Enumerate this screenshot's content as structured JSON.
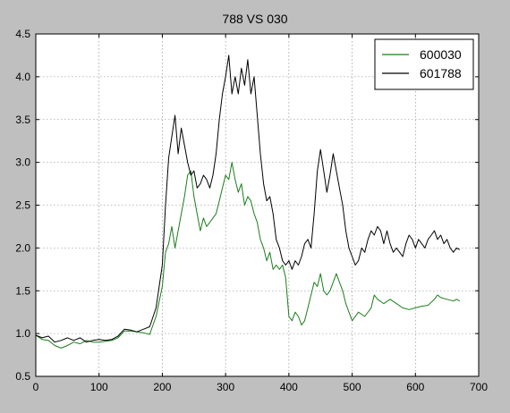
{
  "chart_data": {
    "type": "line",
    "title": "788 VS 030",
    "xlabel": "",
    "ylabel": "",
    "xlim": [
      0,
      700
    ],
    "ylim": [
      0.5,
      4.5
    ],
    "xticks": [
      0,
      100,
      200,
      300,
      400,
      500,
      600,
      700
    ],
    "yticks": [
      0.5,
      1.0,
      1.5,
      2.0,
      2.5,
      3.0,
      3.5,
      4.0,
      4.5
    ],
    "xtick_labels": [
      "0",
      "100",
      "200",
      "300",
      "400",
      "500",
      "600",
      "700"
    ],
    "ytick_labels": [
      "0.5",
      "1.0",
      "1.5",
      "2.0",
      "2.5",
      "3.0",
      "3.5",
      "4.0",
      "4.5"
    ],
    "grid": true,
    "legend_position": "top-right",
    "series": [
      {
        "name": "600030",
        "color": "#1a7f1a",
        "points": [
          [
            0,
            0.98
          ],
          [
            10,
            0.93
          ],
          [
            20,
            0.92
          ],
          [
            30,
            0.86
          ],
          [
            40,
            0.83
          ],
          [
            50,
            0.86
          ],
          [
            60,
            0.9
          ],
          [
            70,
            0.88
          ],
          [
            80,
            0.92
          ],
          [
            90,
            0.9
          ],
          [
            100,
            0.9
          ],
          [
            110,
            0.91
          ],
          [
            120,
            0.92
          ],
          [
            130,
            0.95
          ],
          [
            140,
            1.03
          ],
          [
            150,
            1.03
          ],
          [
            160,
            1.02
          ],
          [
            170,
            1.01
          ],
          [
            180,
            0.99
          ],
          [
            190,
            1.2
          ],
          [
            200,
            1.55
          ],
          [
            205,
            1.95
          ],
          [
            210,
            2.05
          ],
          [
            215,
            2.25
          ],
          [
            220,
            2.0
          ],
          [
            225,
            2.2
          ],
          [
            230,
            2.4
          ],
          [
            235,
            2.6
          ],
          [
            240,
            2.85
          ],
          [
            245,
            2.9
          ],
          [
            250,
            2.6
          ],
          [
            255,
            2.4
          ],
          [
            260,
            2.2
          ],
          [
            265,
            2.35
          ],
          [
            270,
            2.25
          ],
          [
            275,
            2.3
          ],
          [
            280,
            2.35
          ],
          [
            285,
            2.4
          ],
          [
            290,
            2.55
          ],
          [
            295,
            2.7
          ],
          [
            300,
            2.85
          ],
          [
            305,
            2.8
          ],
          [
            310,
            3.0
          ],
          [
            315,
            2.8
          ],
          [
            320,
            2.65
          ],
          [
            325,
            2.75
          ],
          [
            330,
            2.5
          ],
          [
            335,
            2.6
          ],
          [
            340,
            2.55
          ],
          [
            345,
            2.4
          ],
          [
            350,
            2.3
          ],
          [
            355,
            2.1
          ],
          [
            360,
            2.0
          ],
          [
            365,
            1.85
          ],
          [
            370,
            1.95
          ],
          [
            375,
            1.75
          ],
          [
            380,
            1.8
          ],
          [
            385,
            1.75
          ],
          [
            390,
            1.8
          ],
          [
            395,
            1.65
          ],
          [
            400,
            1.2
          ],
          [
            405,
            1.15
          ],
          [
            410,
            1.25
          ],
          [
            415,
            1.2
          ],
          [
            420,
            1.1
          ],
          [
            425,
            1.15
          ],
          [
            430,
            1.3
          ],
          [
            435,
            1.45
          ],
          [
            440,
            1.6
          ],
          [
            445,
            1.55
          ],
          [
            450,
            1.7
          ],
          [
            455,
            1.5
          ],
          [
            460,
            1.45
          ],
          [
            465,
            1.5
          ],
          [
            470,
            1.6
          ],
          [
            475,
            1.7
          ],
          [
            480,
            1.6
          ],
          [
            485,
            1.5
          ],
          [
            490,
            1.35
          ],
          [
            495,
            1.25
          ],
          [
            500,
            1.15
          ],
          [
            505,
            1.2
          ],
          [
            510,
            1.25
          ],
          [
            520,
            1.2
          ],
          [
            530,
            1.3
          ],
          [
            535,
            1.45
          ],
          [
            540,
            1.4
          ],
          [
            550,
            1.35
          ],
          [
            560,
            1.4
          ],
          [
            570,
            1.35
          ],
          [
            580,
            1.3
          ],
          [
            590,
            1.28
          ],
          [
            600,
            1.3
          ],
          [
            610,
            1.32
          ],
          [
            620,
            1.33
          ],
          [
            630,
            1.4
          ],
          [
            635,
            1.45
          ],
          [
            640,
            1.42
          ],
          [
            650,
            1.4
          ],
          [
            660,
            1.38
          ],
          [
            665,
            1.4
          ],
          [
            670,
            1.38
          ]
        ]
      },
      {
        "name": "601788",
        "color": "#000000",
        "points": [
          [
            0,
            0.98
          ],
          [
            10,
            0.95
          ],
          [
            20,
            0.97
          ],
          [
            30,
            0.9
          ],
          [
            40,
            0.92
          ],
          [
            50,
            0.95
          ],
          [
            60,
            0.92
          ],
          [
            70,
            0.95
          ],
          [
            80,
            0.9
          ],
          [
            90,
            0.92
          ],
          [
            100,
            0.93
          ],
          [
            110,
            0.92
          ],
          [
            120,
            0.93
          ],
          [
            130,
            0.97
          ],
          [
            140,
            1.05
          ],
          [
            150,
            1.04
          ],
          [
            160,
            1.02
          ],
          [
            170,
            1.05
          ],
          [
            180,
            1.08
          ],
          [
            190,
            1.3
          ],
          [
            200,
            1.8
          ],
          [
            205,
            2.5
          ],
          [
            210,
            3.05
          ],
          [
            215,
            3.3
          ],
          [
            220,
            3.55
          ],
          [
            225,
            3.1
          ],
          [
            230,
            3.4
          ],
          [
            235,
            3.2
          ],
          [
            240,
            3.0
          ],
          [
            245,
            2.85
          ],
          [
            250,
            2.9
          ],
          [
            255,
            2.7
          ],
          [
            260,
            2.75
          ],
          [
            265,
            2.85
          ],
          [
            270,
            2.8
          ],
          [
            275,
            2.7
          ],
          [
            280,
            2.85
          ],
          [
            285,
            3.1
          ],
          [
            290,
            3.5
          ],
          [
            295,
            3.8
          ],
          [
            300,
            4.0
          ],
          [
            305,
            4.25
          ],
          [
            310,
            3.8
          ],
          [
            315,
            4.0
          ],
          [
            320,
            3.8
          ],
          [
            325,
            4.1
          ],
          [
            330,
            3.9
          ],
          [
            335,
            4.2
          ],
          [
            340,
            3.8
          ],
          [
            345,
            4.0
          ],
          [
            350,
            3.55
          ],
          [
            355,
            3.1
          ],
          [
            360,
            2.75
          ],
          [
            365,
            2.55
          ],
          [
            370,
            2.6
          ],
          [
            375,
            2.4
          ],
          [
            380,
            2.1
          ],
          [
            385,
            2.0
          ],
          [
            390,
            1.85
          ],
          [
            395,
            1.8
          ],
          [
            400,
            1.85
          ],
          [
            405,
            1.75
          ],
          [
            410,
            1.85
          ],
          [
            415,
            1.8
          ],
          [
            420,
            1.9
          ],
          [
            425,
            2.05
          ],
          [
            430,
            2.1
          ],
          [
            435,
            2.0
          ],
          [
            440,
            2.4
          ],
          [
            445,
            2.9
          ],
          [
            450,
            3.15
          ],
          [
            455,
            2.9
          ],
          [
            460,
            2.65
          ],
          [
            465,
            2.85
          ],
          [
            470,
            3.1
          ],
          [
            475,
            2.9
          ],
          [
            480,
            2.7
          ],
          [
            485,
            2.5
          ],
          [
            490,
            2.2
          ],
          [
            495,
            2.0
          ],
          [
            500,
            1.9
          ],
          [
            505,
            1.8
          ],
          [
            510,
            1.85
          ],
          [
            515,
            2.0
          ],
          [
            520,
            1.95
          ],
          [
            525,
            2.1
          ],
          [
            530,
            2.2
          ],
          [
            535,
            2.15
          ],
          [
            540,
            2.25
          ],
          [
            545,
            2.2
          ],
          [
            550,
            2.05
          ],
          [
            555,
            2.2
          ],
          [
            560,
            2.05
          ],
          [
            565,
            1.95
          ],
          [
            570,
            2.0
          ],
          [
            575,
            1.95
          ],
          [
            580,
            1.9
          ],
          [
            585,
            2.05
          ],
          [
            590,
            2.15
          ],
          [
            595,
            2.1
          ],
          [
            600,
            2.0
          ],
          [
            605,
            2.1
          ],
          [
            610,
            2.05
          ],
          [
            615,
            2.0
          ],
          [
            620,
            2.1
          ],
          [
            625,
            2.15
          ],
          [
            630,
            2.2
          ],
          [
            635,
            2.1
          ],
          [
            640,
            2.15
          ],
          [
            645,
            2.05
          ],
          [
            650,
            2.1
          ],
          [
            655,
            2.0
          ],
          [
            660,
            1.95
          ],
          [
            665,
            2.0
          ],
          [
            670,
            1.98
          ]
        ]
      }
    ]
  }
}
